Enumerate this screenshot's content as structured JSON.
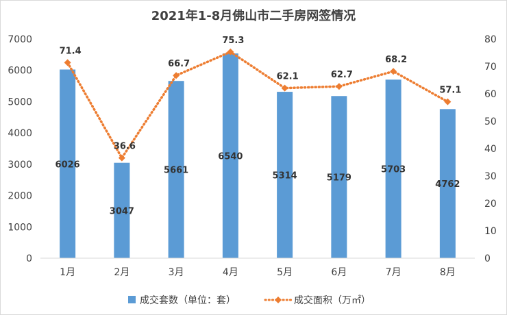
{
  "chart_data": {
    "type": "bar",
    "title": "2021年1-8月佛山市二手房网签情况",
    "categories": [
      "1月",
      "2月",
      "3月",
      "4月",
      "5月",
      "6月",
      "7月",
      "8月"
    ],
    "series": [
      {
        "name": "成交套数（单位：套）",
        "type": "bar",
        "axis": "left",
        "color": "#5B9BD5",
        "values": [
          6026,
          3047,
          5661,
          6540,
          5314,
          5179,
          5703,
          4762
        ]
      },
      {
        "name": "成交面积（万㎡）",
        "type": "line",
        "axis": "right",
        "color": "#ED7D31",
        "style": "dotted",
        "marker": "diamond",
        "values": [
          71.4,
          36.6,
          66.7,
          75.3,
          62.1,
          62.7,
          68.2,
          57.1
        ]
      }
    ],
    "y_left": {
      "min": 0,
      "max": 7000,
      "step": 1000,
      "ticks": [
        "0",
        "1000",
        "2000",
        "3000",
        "4000",
        "5000",
        "6000",
        "7000"
      ]
    },
    "y_right": {
      "min": 0,
      "max": 80,
      "step": 10,
      "ticks": [
        "0",
        "10",
        "20",
        "30",
        "40",
        "50",
        "60",
        "70",
        "80"
      ]
    },
    "grid": false,
    "legend_position": "bottom"
  }
}
